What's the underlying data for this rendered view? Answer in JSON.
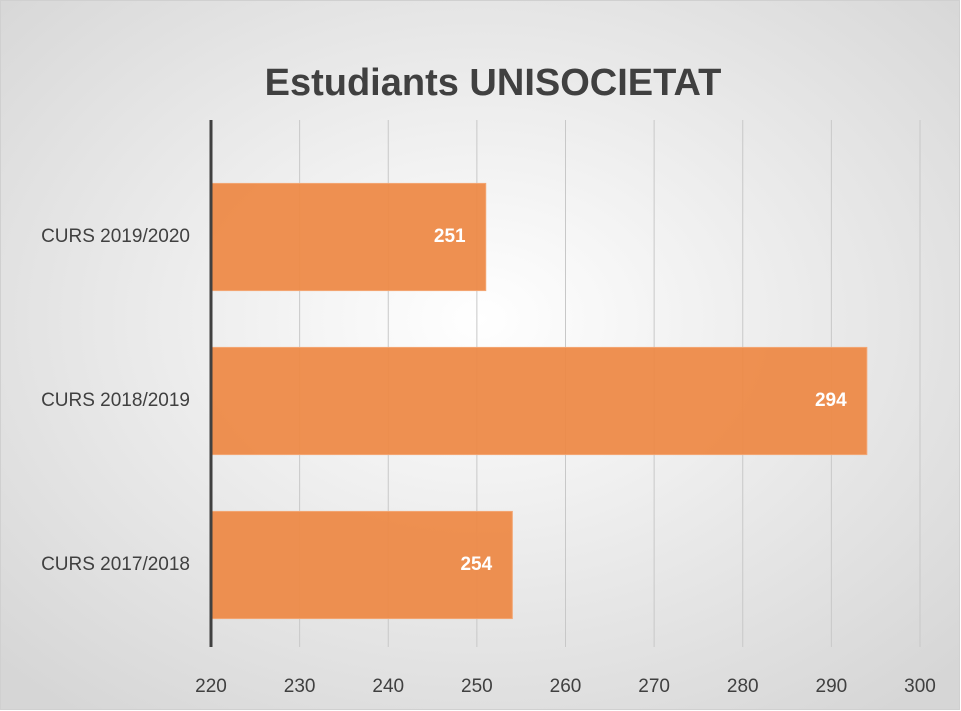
{
  "chart_data": {
    "type": "bar",
    "orientation": "horizontal",
    "title": "Estudiants UNISOCIETAT",
    "categories": [
      "CURS 2019/2020",
      "CURS 2018/2019",
      "CURS 2017/2018"
    ],
    "values": [
      251,
      294,
      254
    ],
    "color": "#ed8a48",
    "xlim": [
      220,
      300
    ],
    "xticks": [
      220,
      230,
      240,
      250,
      260,
      270,
      280,
      290,
      300
    ],
    "grid": true
  }
}
